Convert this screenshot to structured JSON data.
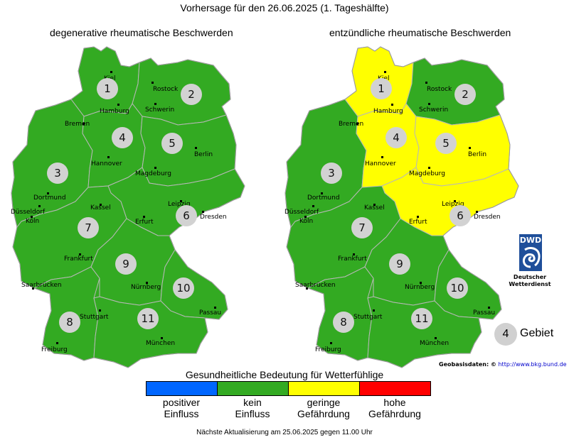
{
  "title": "Vorhersage für den 26.06.2025 (1. Tageshälfte)",
  "maps": [
    {
      "title": "degenerative rheumatische Beschwerden",
      "regions": [
        {
          "number": "1",
          "category": "kein Einfluss"
        },
        {
          "number": "2",
          "category": "kein Einfluss"
        },
        {
          "number": "3",
          "category": "kein Einfluss"
        },
        {
          "number": "4",
          "category": "kein Einfluss"
        },
        {
          "number": "5",
          "category": "kein Einfluss"
        },
        {
          "number": "6",
          "category": "kein Einfluss"
        },
        {
          "number": "7",
          "category": "kein Einfluss"
        },
        {
          "number": "8",
          "category": "kein Einfluss"
        },
        {
          "number": "9",
          "category": "kein Einfluss"
        },
        {
          "number": "10",
          "category": "kein Einfluss"
        },
        {
          "number": "11",
          "category": "kein Einfluss"
        }
      ]
    },
    {
      "title": "entzündliche rheumatische Beschwerden",
      "regions": [
        {
          "number": "1",
          "category": "geringe Gefährdung"
        },
        {
          "number": "2",
          "category": "kein Einfluss"
        },
        {
          "number": "3",
          "category": "kein Einfluss"
        },
        {
          "number": "4",
          "category": "geringe Gefährdung"
        },
        {
          "number": "5",
          "category": "geringe Gefährdung"
        },
        {
          "number": "6",
          "category": "geringe Gefährdung"
        },
        {
          "number": "7",
          "category": "kein Einfluss"
        },
        {
          "number": "8",
          "category": "kein Einfluss"
        },
        {
          "number": "9",
          "category": "kein Einfluss"
        },
        {
          "number": "10",
          "category": "kein Einfluss"
        },
        {
          "number": "11",
          "category": "kein Einfluss"
        }
      ]
    }
  ],
  "cities": [
    "Kiel",
    "Rostock",
    "Hamburg",
    "Schwerin",
    "Bremen",
    "Hannover",
    "Berlin",
    "Magdeburg",
    "Dortmund",
    "Düsseldorf",
    "Köln",
    "Kassel",
    "Leipzig",
    "Dresden",
    "Erfurt",
    "Frankfurt",
    "Saarbrücken",
    "Nürnberg",
    "Passau",
    "Stuttgart",
    "München",
    "Freiburg"
  ],
  "credit": {
    "label": "Geobasisdaten: ©",
    "link": "http://www.bkg.bund.de"
  },
  "logo": {
    "text": "DWD",
    "caption_line1": "Deutscher",
    "caption_line2": "Wetterdienst"
  },
  "region_key": {
    "number": "4",
    "label": "Gebiet"
  },
  "scale": {
    "title": "Gesundheitliche Bedeutung für Wetterfühlige",
    "categories": [
      {
        "line1": "positiver",
        "line2": "Einfluss",
        "color": "#0066ff"
      },
      {
        "line1": "kein",
        "line2": "Einfluss",
        "color": "#33aa22"
      },
      {
        "line1": "geringe",
        "line2": "Gefährdung",
        "color": "#ffff00"
      },
      {
        "line1": "hohe",
        "line2": "Gefährdung",
        "color": "#ff0000"
      }
    ]
  },
  "footer": "Nächste Aktualisierung am 25.06.2025 gegen 11.00 Uhr"
}
